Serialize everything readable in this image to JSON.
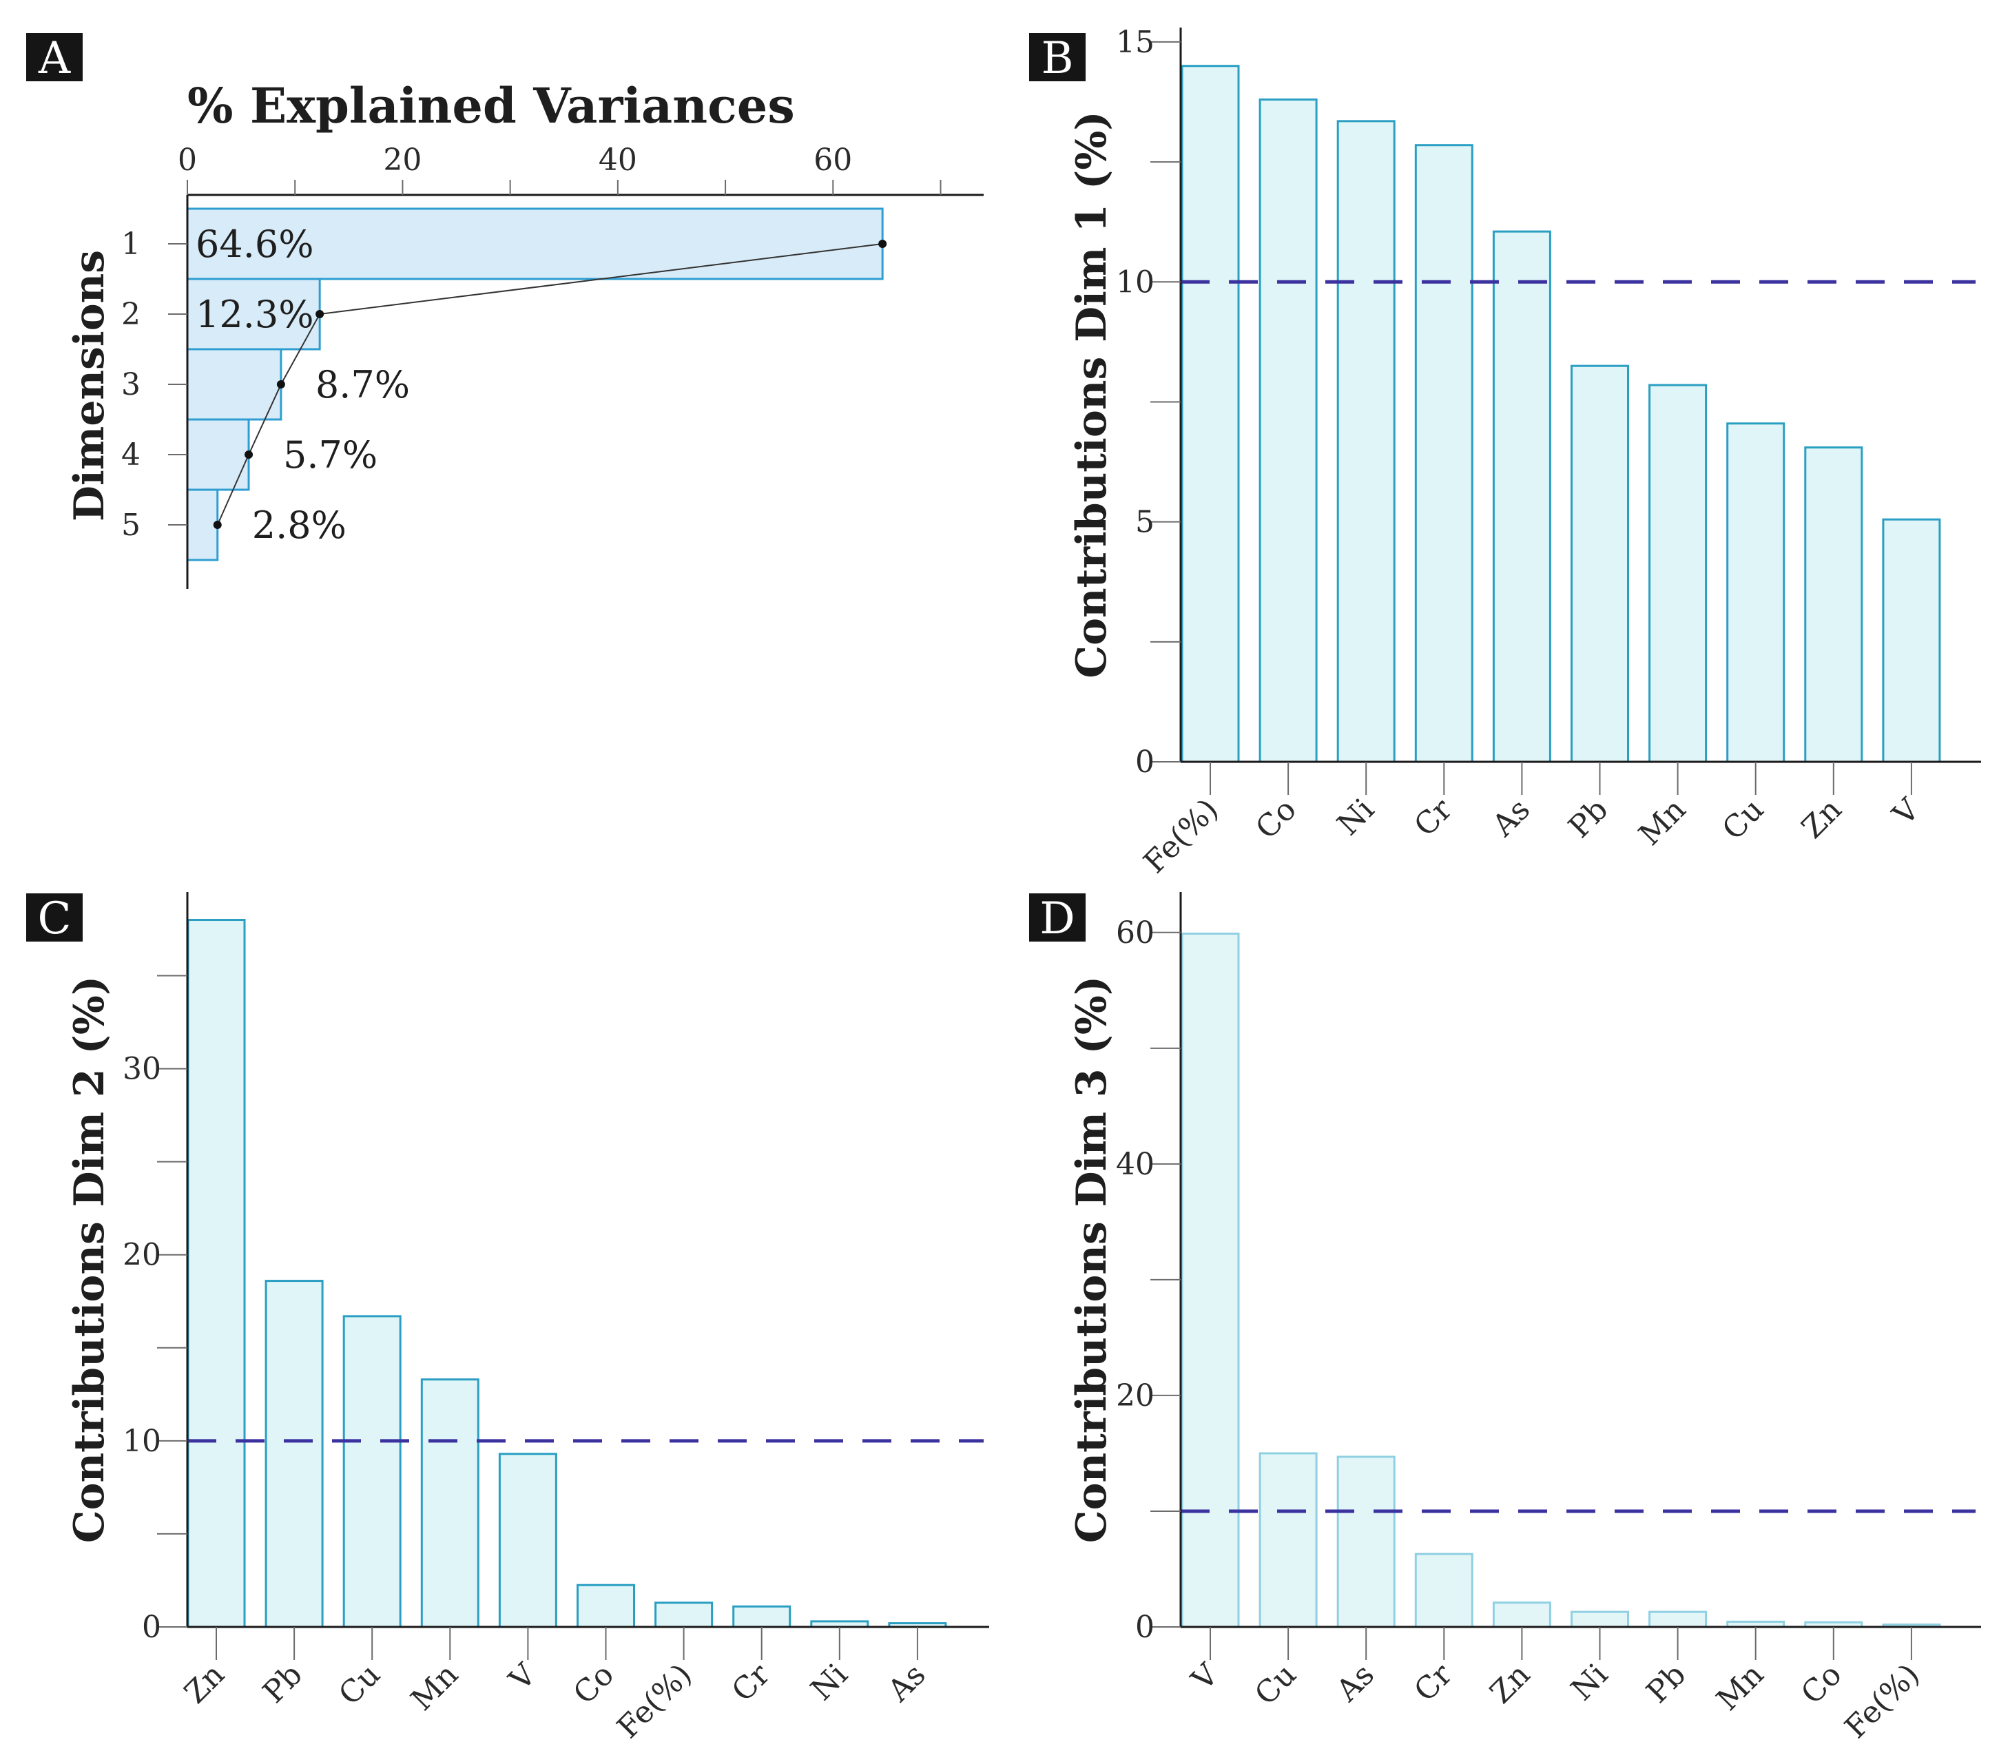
{
  "chart_data": [
    {
      "panel": "A",
      "type": "bar",
      "orientation": "horizontal",
      "title": "% Explained Variances",
      "ylabel": "Dimensions",
      "categories": [
        "1",
        "2",
        "3",
        "4",
        "5"
      ],
      "values": [
        64.6,
        12.3,
        8.7,
        5.7,
        2.8
      ],
      "value_labels": [
        "64.6%",
        "12.3%",
        "8.7%",
        "5.7%",
        "2.8%"
      ],
      "xlim": [
        0,
        74
      ],
      "xticks": [
        0,
        20,
        40,
        60
      ],
      "xticks_minor": [
        10,
        30,
        50,
        70
      ]
    },
    {
      "panel": "B",
      "type": "bar",
      "ylabel": "Contributions Dim 1 (%)",
      "categories": [
        "Fe(%)",
        "Co",
        "Ni",
        "Cr",
        "As",
        "Pb",
        "Mn",
        "Cu",
        "Zn",
        "V"
      ],
      "values": [
        14.5,
        13.8,
        13.35,
        12.85,
        11.05,
        8.25,
        7.85,
        7.05,
        6.55,
        5.05
      ],
      "ylim": [
        0,
        15.3
      ],
      "yticks": [
        0,
        5,
        10,
        15
      ],
      "yticks_minor": [
        2.5,
        7.5,
        12.5
      ],
      "reference_line": 10,
      "style": "normal"
    },
    {
      "panel": "C",
      "type": "bar",
      "ylabel": "Contributions Dim 2 (%)",
      "categories": [
        "Zn",
        "Pb",
        "Cu",
        "Mn",
        "V",
        "Co",
        "Fe(%)",
        "Cr",
        "Ni",
        "As"
      ],
      "values": [
        38.0,
        18.6,
        16.7,
        13.3,
        9.3,
        2.25,
        1.3,
        1.1,
        0.3,
        0.2
      ],
      "ylim": [
        0,
        39.5
      ],
      "yticks": [
        0,
        10,
        20,
        30
      ],
      "yticks_minor": [
        5,
        15,
        25,
        35
      ],
      "reference_line": 10,
      "style": "normal"
    },
    {
      "panel": "D",
      "type": "bar",
      "ylabel": "Contributions Dim 3 (%)",
      "categories": [
        "V",
        "Cu",
        "As",
        "Cr",
        "Zn",
        "Ni",
        "Pb",
        "Mn",
        "Co",
        "Fe(%)"
      ],
      "values": [
        59.9,
        15.0,
        14.7,
        6.3,
        2.1,
        1.3,
        1.3,
        0.45,
        0.4,
        0.2
      ],
      "ylim": [
        0,
        63.5
      ],
      "yticks": [
        0,
        20,
        40,
        60
      ],
      "yticks_minor": [
        10,
        30,
        50
      ],
      "reference_line": 10,
      "style": "light"
    }
  ]
}
